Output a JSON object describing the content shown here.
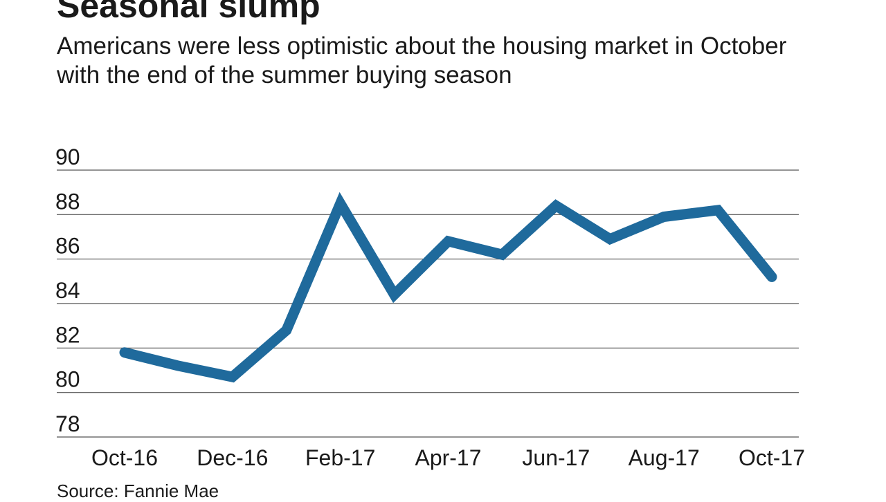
{
  "title": "Seasonal slump",
  "subtitle": "Americans were less optimistic about the housing market in October with the end of the summer buying season",
  "source": "Source: Fannie Mae",
  "colors": {
    "line": "#1f6a9c",
    "grid": "#555555",
    "text": "#1a1a1a"
  },
  "chart_data": {
    "type": "line",
    "title": "Seasonal slump",
    "xlabel": "",
    "ylabel": "",
    "grid": true,
    "ylim": [
      78,
      90
    ],
    "yticks": [
      90,
      88,
      86,
      84,
      82,
      80,
      78
    ],
    "x": [
      "Oct-16",
      "Nov-16",
      "Dec-16",
      "Jan-17",
      "Feb-17",
      "Mar-17",
      "Apr-17",
      "May-17",
      "Jun-17",
      "Jul-17",
      "Aug-17",
      "Sep-17",
      "Oct-17"
    ],
    "xtick_labels": [
      "Oct-16",
      "Dec-16",
      "Feb-17",
      "Apr-17",
      "Jun-17",
      "Aug-17",
      "Oct-17"
    ],
    "series": [
      {
        "values": [
          81.8,
          81.2,
          80.7,
          82.8,
          88.5,
          84.4,
          86.8,
          86.2,
          88.4,
          86.9,
          87.9,
          88.2,
          85.2
        ]
      }
    ]
  }
}
